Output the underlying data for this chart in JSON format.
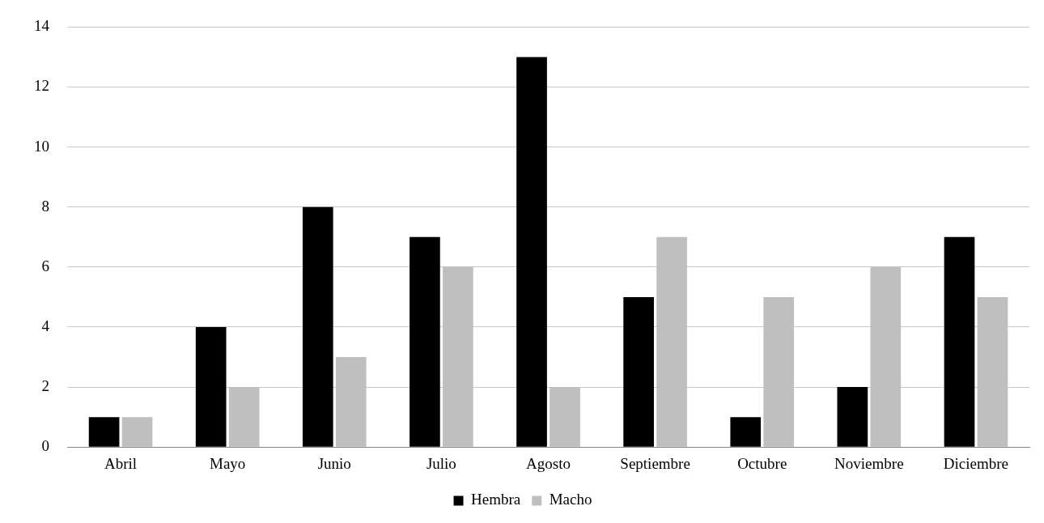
{
  "chart_data": {
    "type": "bar",
    "categories": [
      "Abril",
      "Mayo",
      "Junio",
      "Julio",
      "Agosto",
      "Septiembre",
      "Octubre",
      "Noviembre",
      "Diciembre"
    ],
    "series": [
      {
        "name": "Hembra",
        "color": "#000000",
        "values": [
          1,
          4,
          8,
          7,
          13,
          5,
          1,
          2,
          7
        ]
      },
      {
        "name": "Macho",
        "color": "#bfbfbf",
        "values": [
          1,
          2,
          3,
          6,
          2,
          7,
          5,
          6,
          5
        ]
      }
    ],
    "ylim": [
      0,
      14
    ],
    "yticks": [
      0,
      2,
      4,
      6,
      8,
      10,
      12,
      14
    ],
    "grid": "y",
    "legend": "bottom"
  }
}
